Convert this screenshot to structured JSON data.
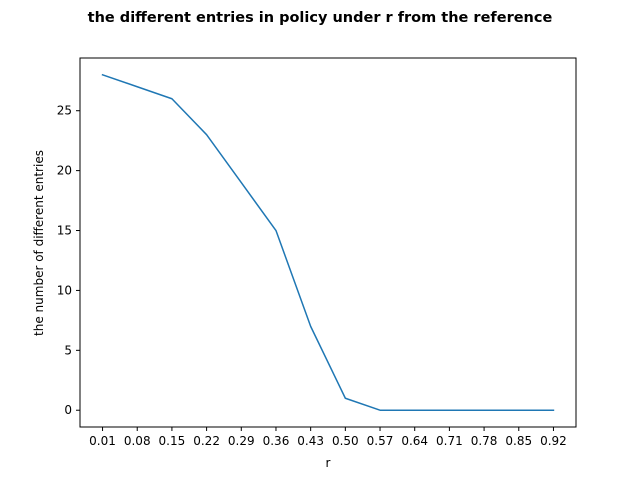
{
  "chart_data": {
    "type": "line",
    "title": "the different entries in policy under r from the reference",
    "xlabel": "r",
    "ylabel": "the number of different entries",
    "x": [
      0.01,
      0.08,
      0.15,
      0.22,
      0.29,
      0.36,
      0.43,
      0.5,
      0.57,
      0.64,
      0.71,
      0.78,
      0.85,
      0.92
    ],
    "xticks": [
      "0.01",
      "0.08",
      "0.15",
      "0.22",
      "0.29",
      "0.36",
      "0.43",
      "0.50",
      "0.57",
      "0.64",
      "0.71",
      "0.78",
      "0.85",
      "0.92"
    ],
    "yticks": [
      0,
      5,
      10,
      15,
      20,
      25
    ],
    "series": [
      {
        "values": [
          28,
          27,
          26,
          23,
          19,
          15,
          7,
          1,
          0,
          0,
          0,
          0,
          0,
          0
        ],
        "color": "#1f77b4"
      }
    ],
    "xlim": [
      -0.0355,
      0.9655
    ],
    "ylim": [
      -1.4,
      29.4
    ],
    "grid": false,
    "legend": "none"
  }
}
